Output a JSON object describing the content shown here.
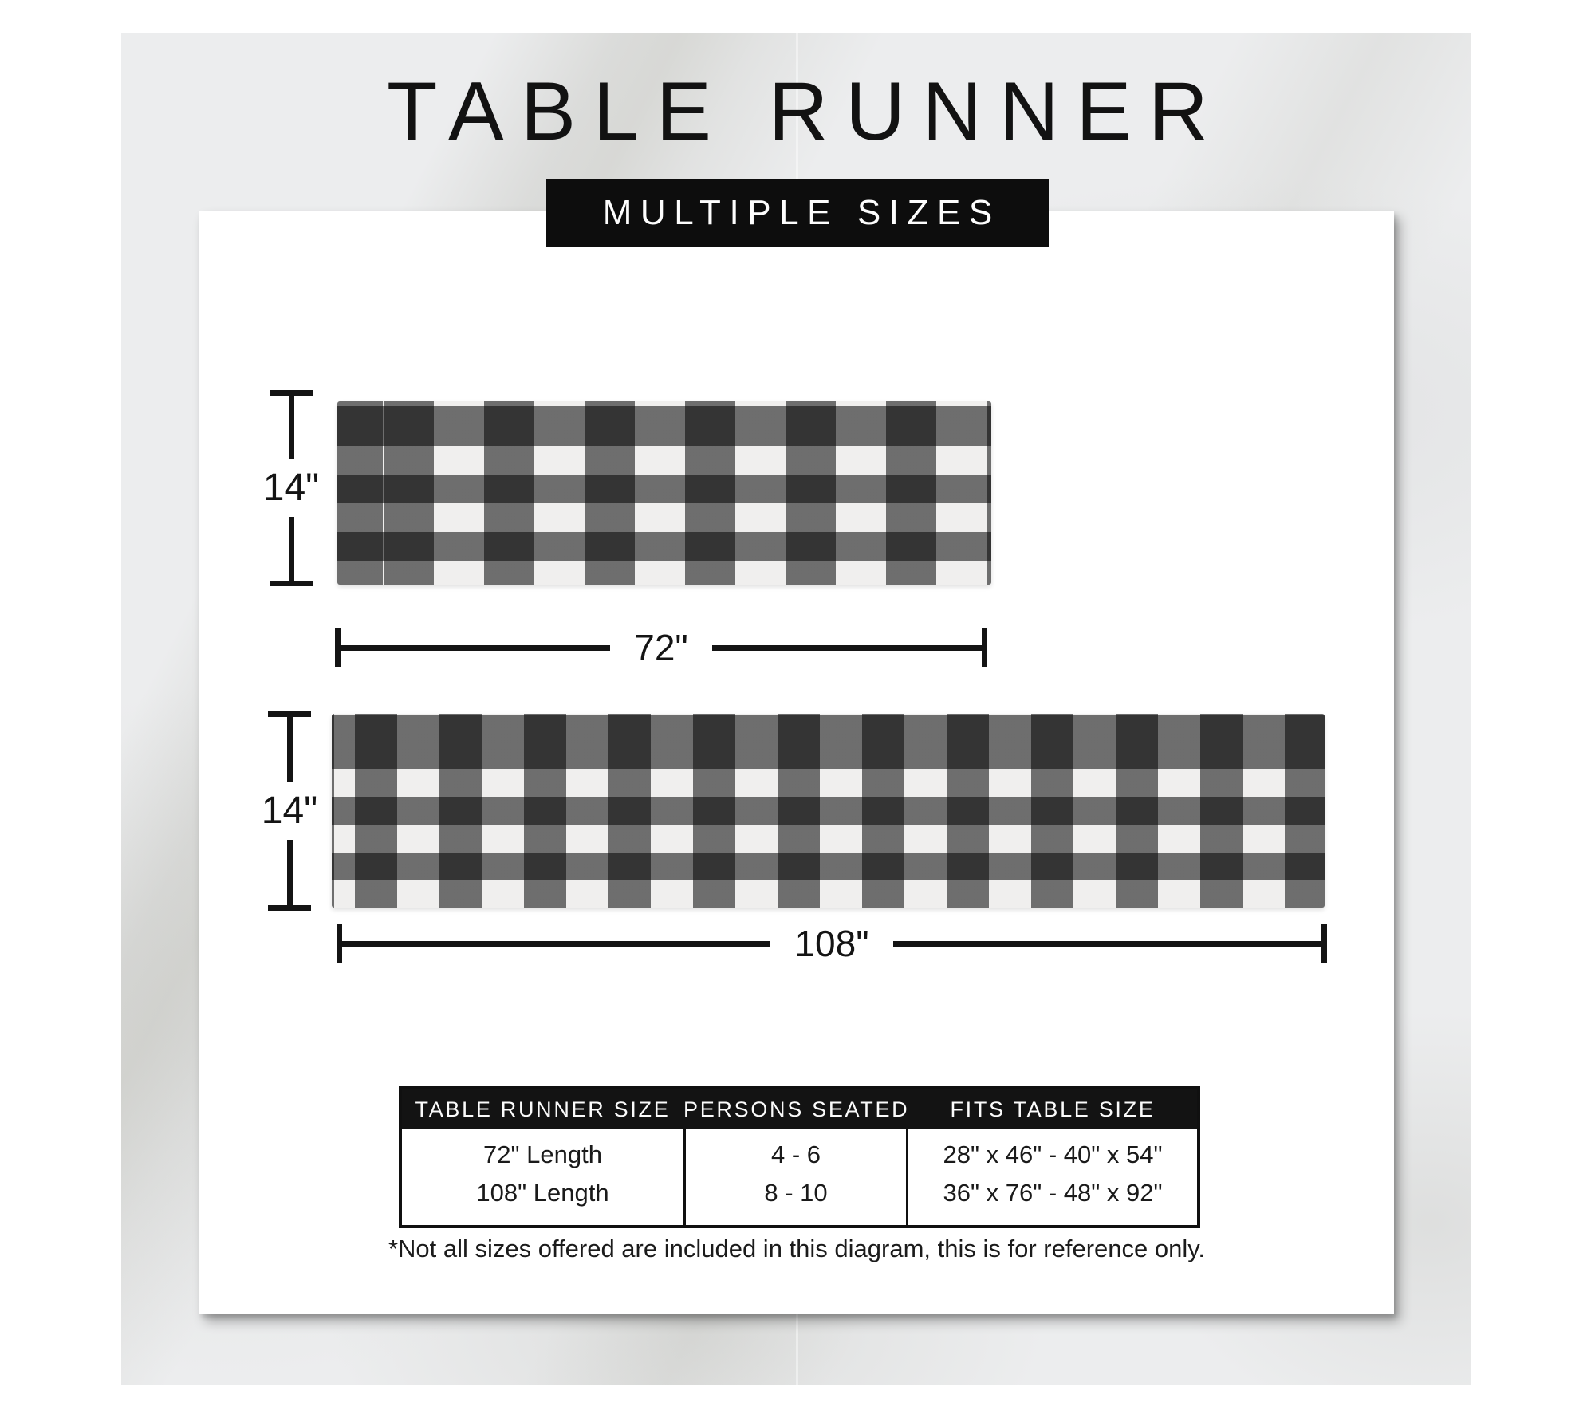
{
  "header": {
    "title": "TABLE RUNNER",
    "badge": "MULTIPLE SIZES"
  },
  "runners": [
    {
      "name": "72-inch table runner",
      "height_label": "14\"",
      "length_label": "72\""
    },
    {
      "name": "108-inch table runner",
      "height_label": "14\"",
      "length_label": "108\""
    }
  ],
  "size_table": {
    "headers": [
      "TABLE RUNNER SIZE",
      "PERSONS SEATED",
      "FITS TABLE SIZE"
    ],
    "rows": [
      [
        "72\" Length",
        "4 - 6",
        "28\" x 46\" - 40\" x 54\""
      ],
      [
        "108\" Length",
        "8 - 10",
        "36\" x 76\" - 48\" x 92\""
      ]
    ]
  },
  "footnote": "*Not all sizes offered are included in this diagram, this is for reference only.",
  "colors": {
    "banner_bg": "#0d0d0d",
    "table_header_bg": "#131313",
    "ink": "#141414",
    "check_black": "#2e2e2e",
    "check_gray": "#6a6a6a",
    "check_white": "#f0efee",
    "card_bg": "#ffffff",
    "marble_base": "#ecedee"
  }
}
